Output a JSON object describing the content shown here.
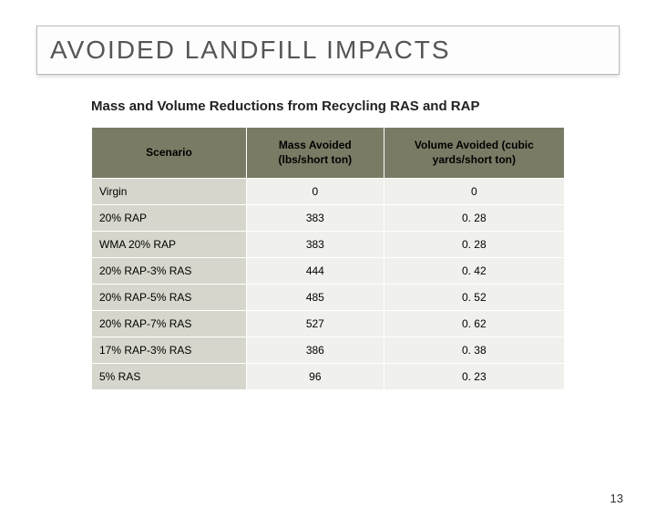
{
  "title": "AVOIDED LANDFILL IMPACTS",
  "subtitle": "Mass and Volume Reductions from Recycling RAS and RAP",
  "table": {
    "columns": [
      "Scenario",
      "Mass Avoided (lbs/short ton)",
      "Volume Avoided (cubic yards/short ton)"
    ],
    "rows": [
      [
        "Virgin",
        "0",
        "0"
      ],
      [
        "20% RAP",
        "383",
        "0. 28"
      ],
      [
        "WMA 20% RAP",
        "383",
        "0. 28"
      ],
      [
        "20% RAP-3% RAS",
        "444",
        "0. 42"
      ],
      [
        "20% RAP-5% RAS",
        "485",
        "0. 52"
      ],
      [
        "20% RAP-7% RAS",
        "527",
        "0. 62"
      ],
      [
        "17% RAP-3% RAS",
        "386",
        "0. 38"
      ],
      [
        "5% RAS",
        "96",
        "0. 23"
      ]
    ],
    "header_bg": "#7a7b65",
    "col1_bg": "#d6d6cc",
    "cell_bg": "#f0f0ec",
    "border_color": "#ffffff"
  },
  "page_number": "13"
}
